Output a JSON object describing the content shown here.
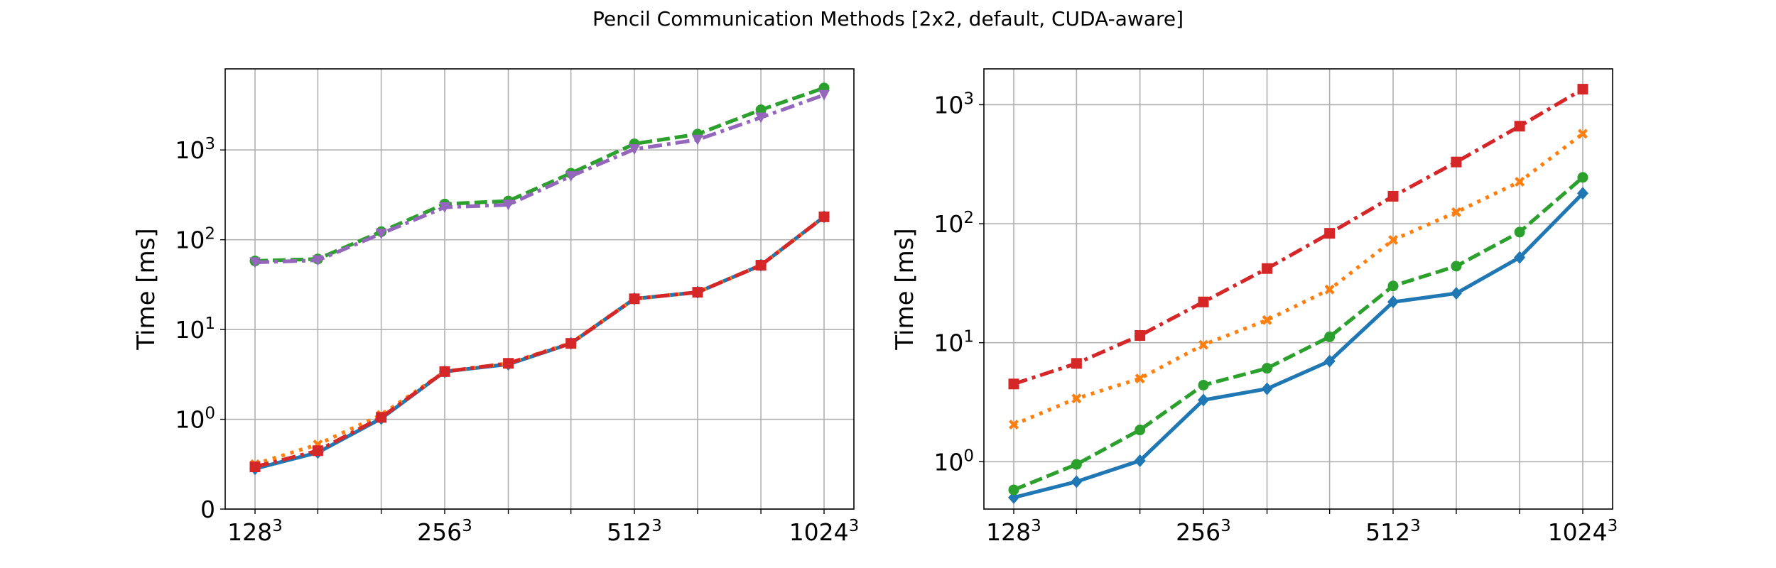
{
  "title": "Pencil Communication Methods [2x2, default, CUDA-aware]",
  "chart_data": [
    {
      "type": "line",
      "ylabel": "Time [ms]",
      "xlabel": "",
      "y_scale": "symlog",
      "linthresh": 1,
      "ylim": [
        0,
        8000
      ],
      "grid": true,
      "x_tick_labels": [
        {
          "base": "128",
          "exp": "3"
        },
        {
          "base": "256",
          "exp": "3"
        },
        {
          "base": "512",
          "exp": "3"
        },
        {
          "base": "1024",
          "exp": "3"
        }
      ],
      "y_tick_labels": [
        {
          "base": "0",
          "exp": ""
        },
        {
          "base": "10",
          "exp": "0"
        },
        {
          "base": "10",
          "exp": "1"
        },
        {
          "base": "10",
          "exp": "2"
        },
        {
          "base": "10",
          "exp": "3"
        }
      ],
      "x": [
        128,
        161,
        203,
        256,
        323,
        406,
        512,
        645,
        813,
        1024
      ],
      "series": [
        {
          "color": "#1f77b4",
          "marker": "diamond",
          "linestyle": "solid",
          "values": [
            0.45,
            0.63,
            1.02,
            3.4,
            4.1,
            7.0,
            22,
            26,
            52,
            180
          ]
        },
        {
          "color": "#ff7f0e",
          "marker": "x",
          "linestyle": "dotted",
          "values": [
            0.5,
            0.72,
            1.12,
            3.4,
            4.2,
            7.1,
            22,
            26,
            52,
            180
          ]
        },
        {
          "color": "#2ca02c",
          "marker": "circle",
          "linestyle": "dashed",
          "values": [
            58,
            61,
            123,
            250,
            270,
            550,
            1170,
            1500,
            2800,
            4900
          ]
        },
        {
          "color": "#d62728",
          "marker": "square",
          "linestyle": "dashdot",
          "values": [
            0.47,
            0.65,
            1.05,
            3.4,
            4.2,
            7.0,
            22,
            26,
            52,
            180
          ]
        },
        {
          "color": "#9467bd",
          "marker": "triangle-down",
          "linestyle": "dashdot",
          "values": [
            56,
            59,
            117,
            230,
            245,
            510,
            1020,
            1300,
            2300,
            4100
          ]
        }
      ]
    },
    {
      "type": "line",
      "ylabel": "Time [ms]",
      "xlabel": "",
      "y_scale": "log",
      "ylim": [
        0.4,
        2000
      ],
      "grid": true,
      "x_tick_labels": [
        {
          "base": "128",
          "exp": "3"
        },
        {
          "base": "256",
          "exp": "3"
        },
        {
          "base": "512",
          "exp": "3"
        },
        {
          "base": "1024",
          "exp": "3"
        }
      ],
      "y_tick_labels": [
        {
          "base": "10",
          "exp": "0"
        },
        {
          "base": "10",
          "exp": "1"
        },
        {
          "base": "10",
          "exp": "2"
        },
        {
          "base": "10",
          "exp": "3"
        }
      ],
      "x": [
        128,
        161,
        203,
        256,
        323,
        406,
        512,
        645,
        813,
        1024
      ],
      "series": [
        {
          "color": "#1f77b4",
          "marker": "diamond",
          "linestyle": "solid",
          "values": [
            0.5,
            0.68,
            1.02,
            3.3,
            4.1,
            7.0,
            22,
            26,
            52,
            180
          ]
        },
        {
          "color": "#ff7f0e",
          "marker": "x",
          "linestyle": "dotted",
          "values": [
            2.05,
            3.4,
            5.0,
            9.6,
            15.5,
            28,
            73,
            125,
            225,
            570
          ]
        },
        {
          "color": "#2ca02c",
          "marker": "circle",
          "linestyle": "dashed",
          "values": [
            0.58,
            0.95,
            1.85,
            4.4,
            6.1,
            11.2,
            30,
            44,
            85,
            245
          ]
        },
        {
          "color": "#d62728",
          "marker": "square",
          "linestyle": "dashdot",
          "values": [
            4.5,
            6.7,
            11.5,
            22,
            42,
            83,
            170,
            330,
            660,
            1350
          ]
        }
      ]
    }
  ]
}
